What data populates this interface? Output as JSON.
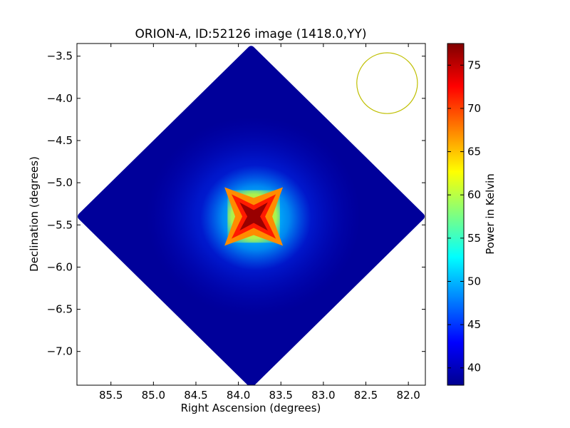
{
  "chart_data": {
    "type": "heatmap",
    "title": "ORION-A, ID:52126 image (1418.0,YY)",
    "xlabel": "Right Ascension (degrees)",
    "ylabel": "Declination (degrees)",
    "xlim": [
      85.9,
      81.8
    ],
    "ylim": [
      -7.4,
      -3.35
    ],
    "x_inverted": true,
    "x_ticks": [
      85.5,
      85.0,
      84.5,
      84.0,
      83.5,
      83.0,
      82.5,
      82.0
    ],
    "x_tick_labels": [
      "85.5",
      "85.0",
      "84.5",
      "84.0",
      "83.5",
      "83.0",
      "82.5",
      "82.0"
    ],
    "y_ticks": [
      -3.5,
      -4.0,
      -4.5,
      -5.0,
      -5.5,
      -6.0,
      -6.5,
      -7.0
    ],
    "y_tick_labels": [
      "−3.5",
      "−4.0",
      "−4.5",
      "−5.0",
      "−5.5",
      "−6.0",
      "−6.5",
      "−7.0"
    ],
    "map_region": {
      "shape": "diamond",
      "center_ra": 83.85,
      "center_dec": -5.4,
      "half_width_ra": 2.0,
      "half_height_dec": 1.98
    },
    "peak": {
      "ra": 83.82,
      "dec": -5.4,
      "value": 77
    },
    "background_value": 39,
    "beam_circle": {
      "ra": 82.25,
      "dec": -3.82,
      "radius_deg": 0.36,
      "color": "#bfbf00"
    },
    "colorbar": {
      "label": "Power in Kelvin",
      "min": 38,
      "max": 77.5,
      "ticks": [
        40,
        45,
        50,
        55,
        60,
        65,
        70,
        75
      ],
      "tick_labels": [
        "40",
        "45",
        "50",
        "55",
        "60",
        "65",
        "70",
        "75"
      ],
      "colormap": "jet"
    },
    "grid": false
  }
}
